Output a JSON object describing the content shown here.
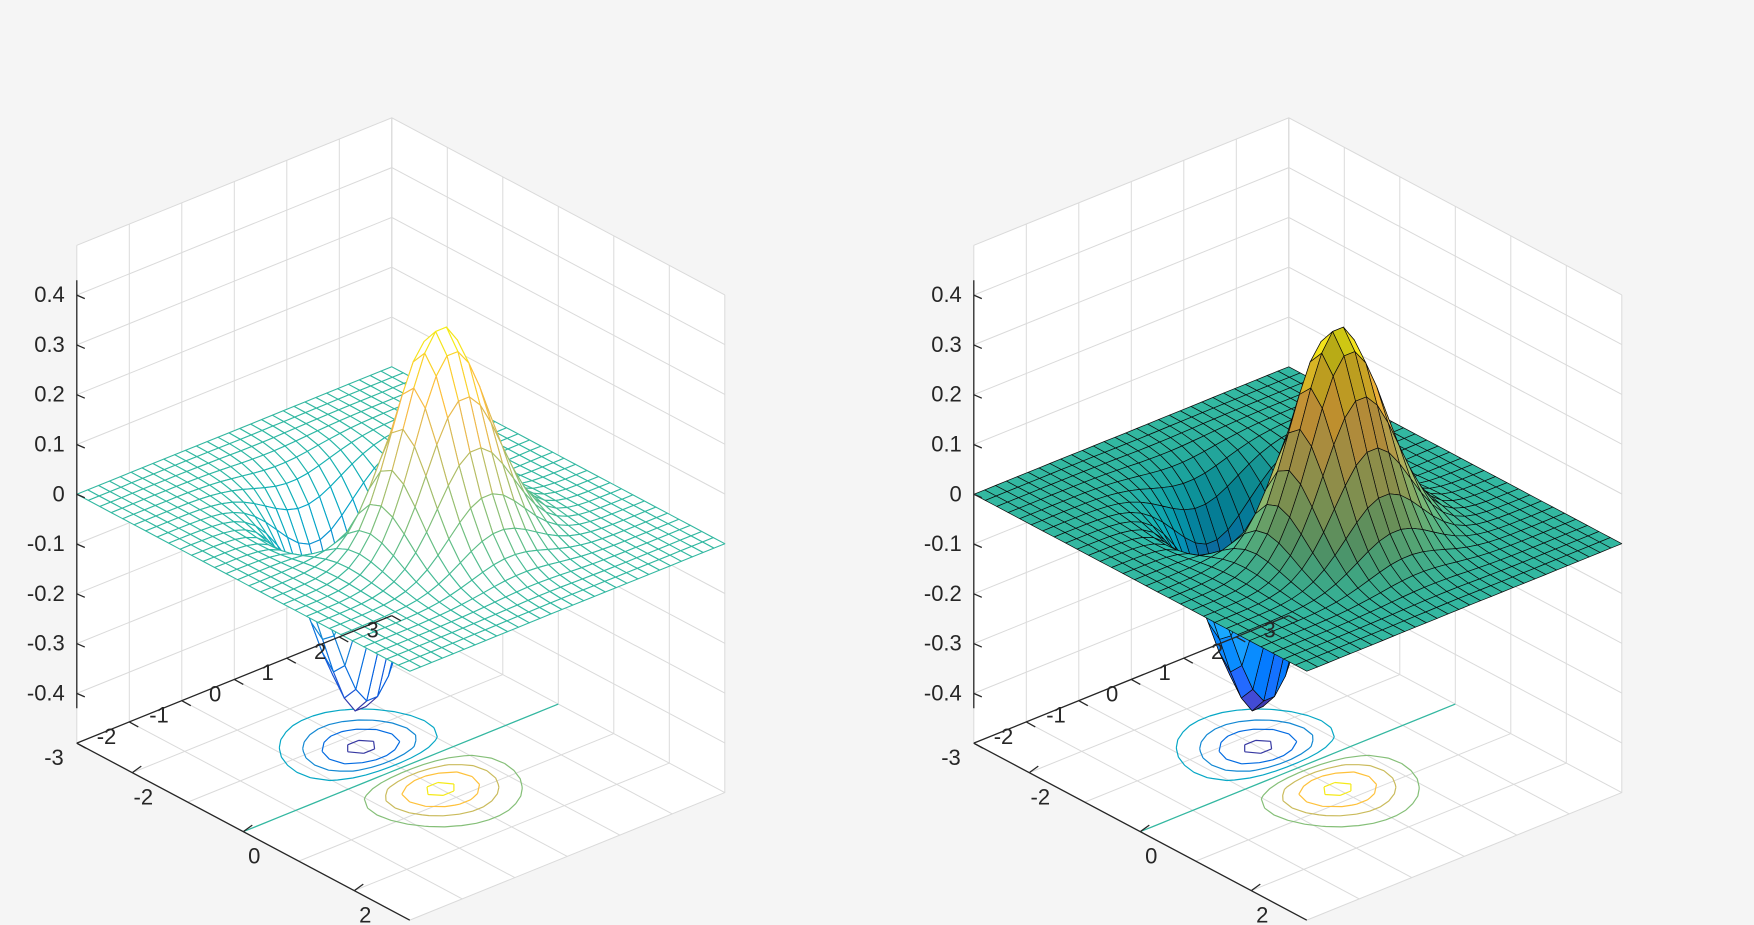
{
  "figure": {
    "background": "#f5f5f5",
    "colormap": "parula"
  },
  "chart_data": [
    {
      "type": "surface",
      "style": "mesh + contour (meshc)",
      "function": "z = x * exp(-x^2 - y^2)",
      "x": {
        "range": [
          -3,
          3
        ],
        "ticks": [
          -2,
          0,
          2
        ],
        "tick_labels": [
          "-2",
          "0",
          "2"
        ]
      },
      "y": {
        "range": [
          -3,
          3
        ],
        "ticks": [
          -3,
          -2,
          -1,
          0,
          1,
          2,
          3
        ],
        "tick_labels": [
          "-3",
          "-2",
          "-1",
          "0",
          "1",
          "2",
          "3"
        ]
      },
      "z": {
        "range": [
          -0.43,
          0.43
        ],
        "ticks": [
          -0.4,
          -0.3,
          -0.2,
          -0.1,
          0,
          0.1,
          0.2,
          0.3,
          0.4
        ],
        "tick_labels": [
          "-0.4",
          "-0.3",
          "-0.2",
          "-0.1",
          "0",
          "0.1",
          "0.2",
          "0.3",
          "0.4"
        ]
      },
      "grid_points": 30,
      "peak": {
        "x": 0.71,
        "y": 0,
        "z": 0.43
      },
      "trough": {
        "x": -0.71,
        "y": 0,
        "z": -0.43
      },
      "grid": true,
      "colors": {
        "accent_high": "#f9fb0e",
        "accent_mid": "#1fb8b4",
        "accent_low": "#3e3aec"
      }
    },
    {
      "type": "surface",
      "style": "shaded surface + contour (surfc)",
      "function": "z = x * exp(-x^2 - y^2)",
      "x": {
        "range": [
          -3,
          3
        ],
        "ticks": [
          -2,
          0,
          2
        ],
        "tick_labels": [
          "-2",
          "0",
          "2"
        ]
      },
      "y": {
        "range": [
          -3,
          3
        ],
        "ticks": [
          -3,
          -2,
          -1,
          0,
          1,
          2,
          3
        ],
        "tick_labels": [
          "-3",
          "-2",
          "-1",
          "0",
          "1",
          "2",
          "3"
        ]
      },
      "z": {
        "range": [
          -0.43,
          0.43
        ],
        "ticks": [
          -0.4,
          -0.3,
          -0.2,
          -0.1,
          0,
          0.1,
          0.2,
          0.3,
          0.4
        ],
        "tick_labels": [
          "-0.4",
          "-0.3",
          "-0.2",
          "-0.1",
          "0",
          "0.1",
          "0.2",
          "0.3",
          "0.4"
        ]
      },
      "grid_points": 30,
      "peak": {
        "x": 0.71,
        "y": 0,
        "z": 0.43
      },
      "trough": {
        "x": -0.71,
        "y": 0,
        "z": -0.43
      },
      "grid": true,
      "colors": {
        "accent_high": "#f9fb0e",
        "accent_mid": "#1fb8b4",
        "accent_low": "#3e3aec",
        "edge": "#000000"
      }
    }
  ]
}
